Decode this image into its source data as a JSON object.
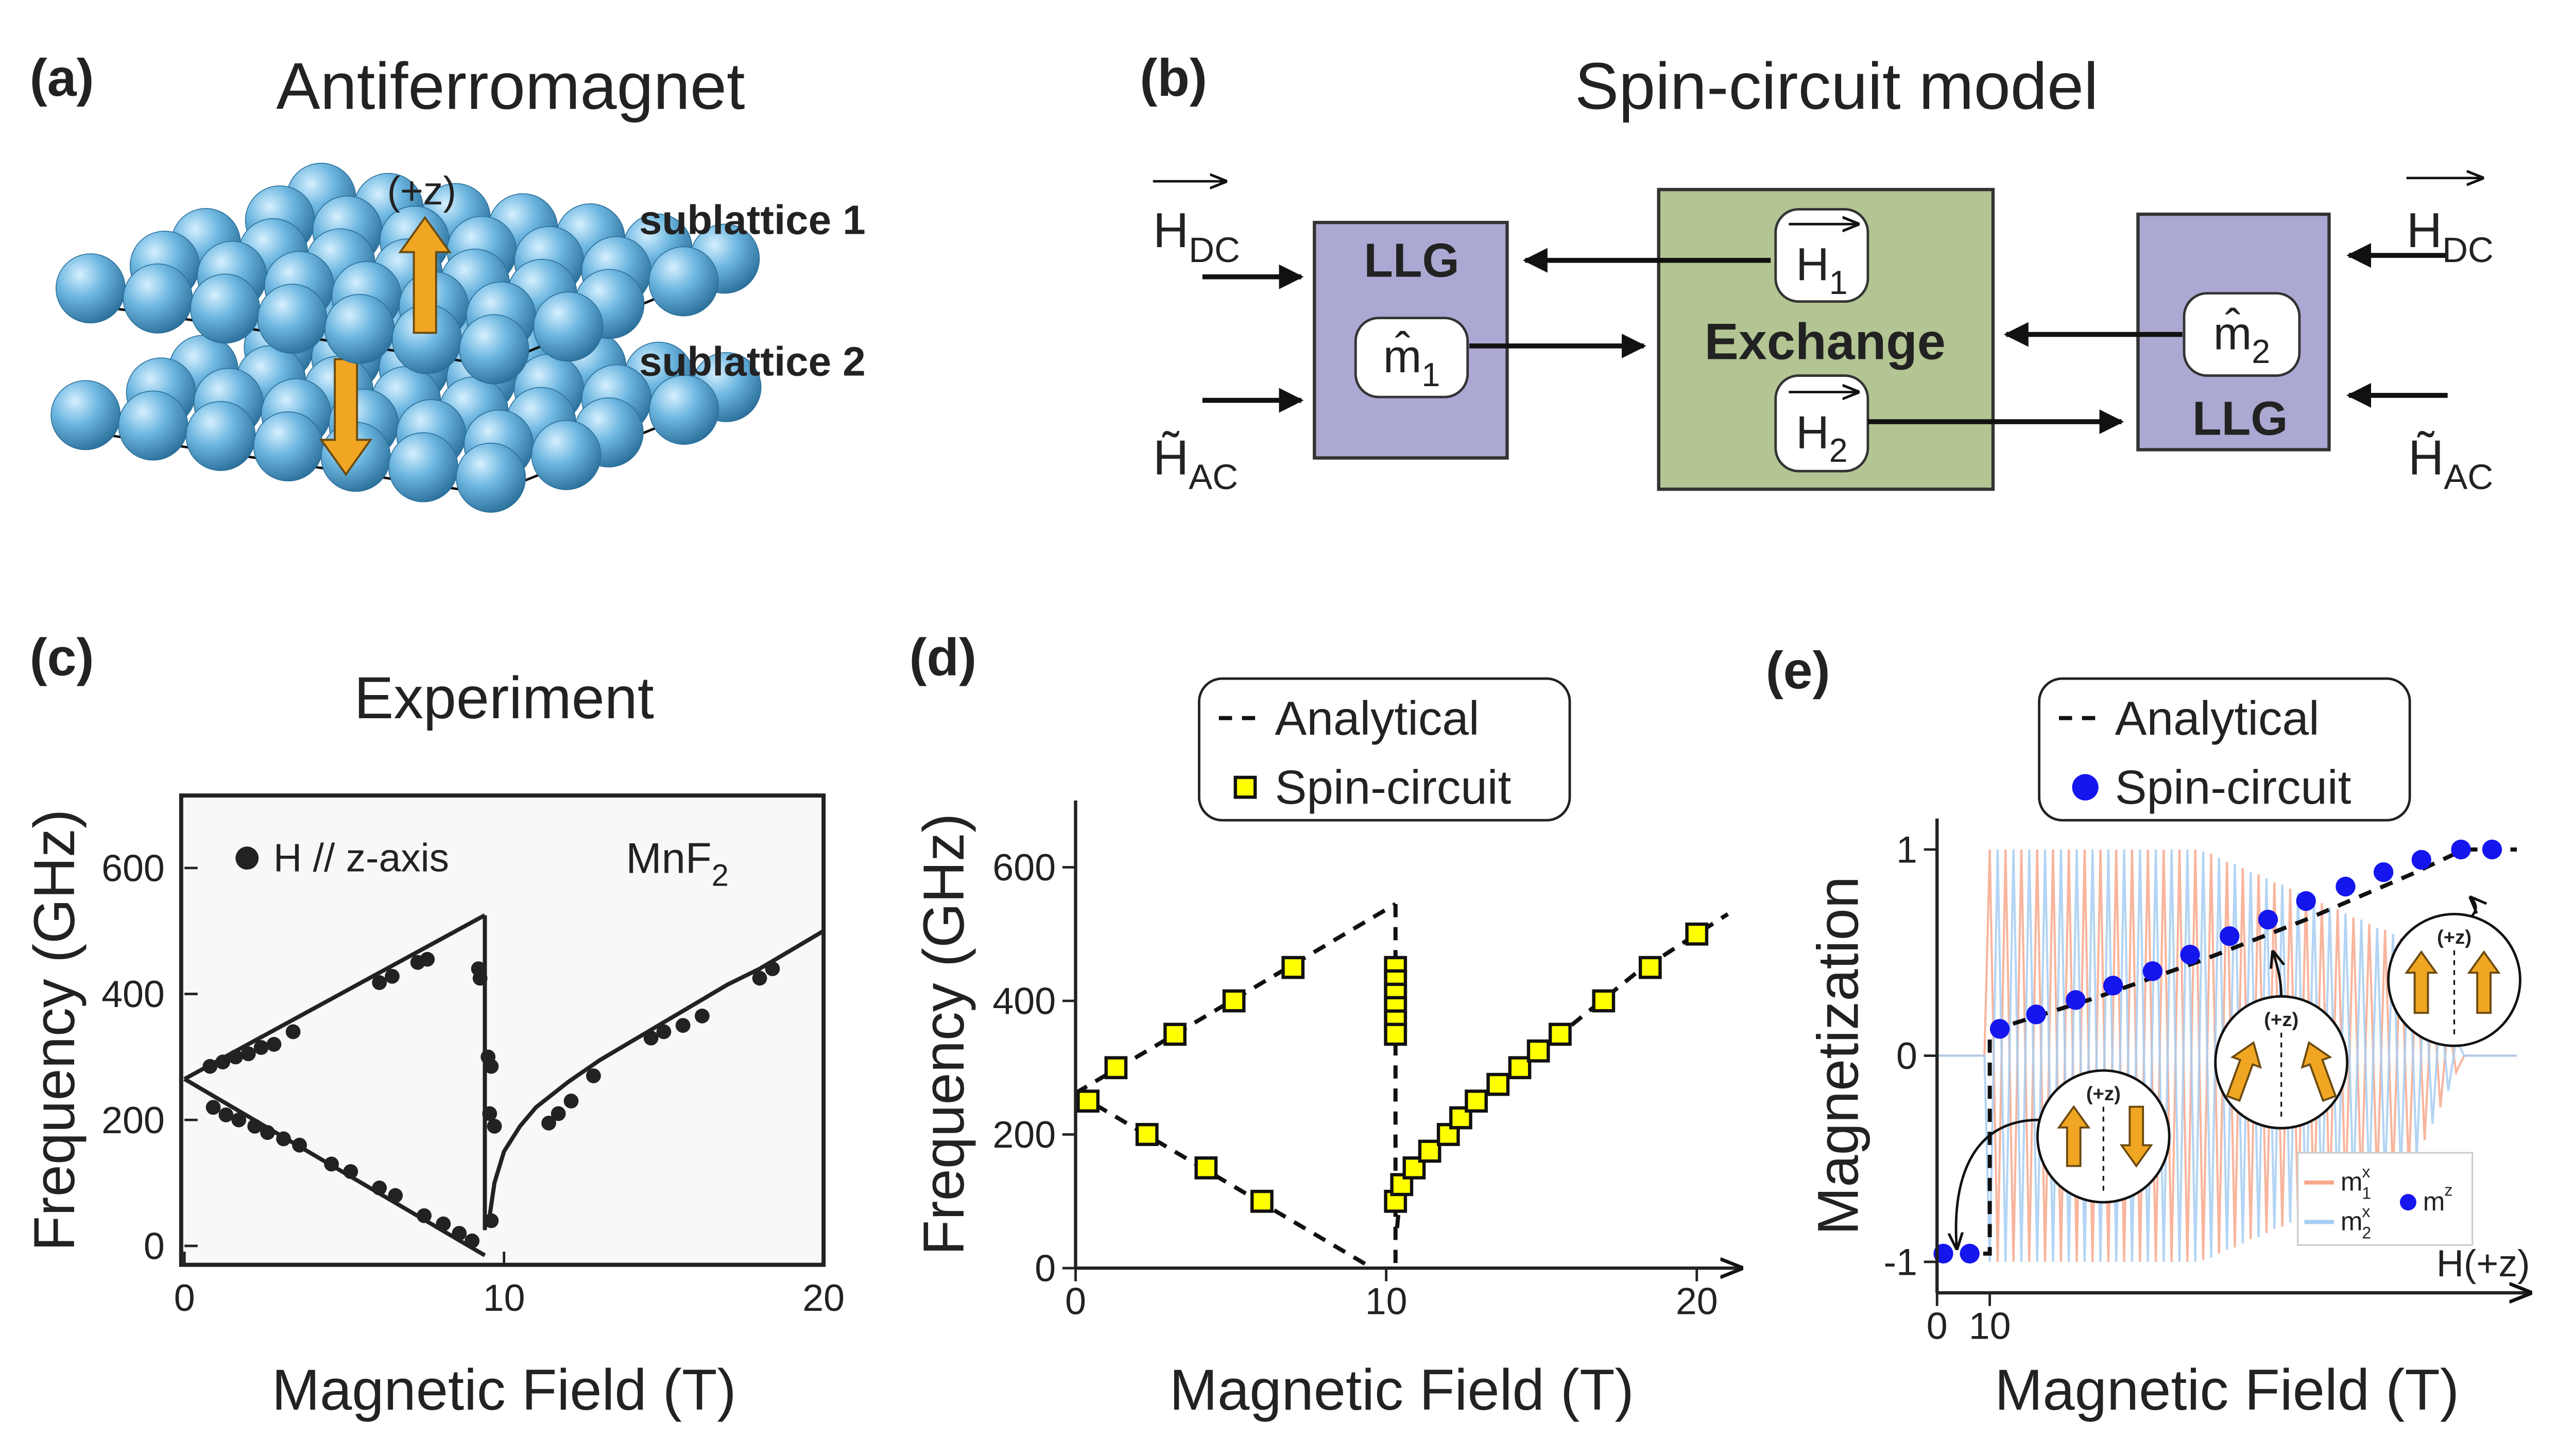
{
  "panel_a": {
    "label": "(a)",
    "title": "Antiferromagnet",
    "axis_label": "(+z)",
    "layers": [
      "sublattice 1",
      "sublattice 2"
    ]
  },
  "panel_b": {
    "label": "(b)",
    "title": "Spin-circuit model",
    "left_inputs": [
      {
        "base": "H",
        "sub": "DC"
      },
      {
        "base": "H̃",
        "sub": "AC"
      }
    ],
    "right_inputs": [
      {
        "base": "H",
        "sub": "DC"
      },
      {
        "base": "H̃",
        "sub": "AC"
      }
    ],
    "llg_1": {
      "title": "LLG",
      "state": {
        "base": "m̂",
        "sub": "1"
      }
    },
    "exchange": {
      "title": "Exchange",
      "field_1": {
        "base": "H",
        "sub": "1"
      },
      "field_2": {
        "base": "H",
        "sub": "2"
      }
    },
    "llg_2": {
      "title": "LLG",
      "state": {
        "base": "m̂",
        "sub": "2"
      }
    }
  },
  "chart_data": [
    {
      "type": "scatter",
      "panel_label": "(c)",
      "title": "Experiment",
      "xlabel": "Magnetic Field (T)",
      "ylabel": "Frequency (GHz)",
      "xlim": [
        0,
        20
      ],
      "ylim": [
        -30,
        715
      ],
      "xticks": [
        0,
        10,
        20
      ],
      "yticks": [
        0,
        200,
        400,
        600
      ],
      "frame": true,
      "legend": "upper left",
      "annotation": {
        "text": "MnF",
        "sub": "2"
      },
      "series": [
        {
          "name": "H // z-axis",
          "kind": "scatter",
          "marker": "circle",
          "color": "#222222",
          "x": [
            0.8,
            1.2,
            1.6,
            2,
            2.4,
            2.8,
            3.4,
            6.1,
            6.5,
            7.3,
            7.6,
            9.2,
            9.25,
            0.9,
            1.3,
            1.7,
            2.2,
            2.6,
            3.1,
            3.6,
            4.6,
            5.2,
            6.1,
            6.6,
            7.5,
            8.1,
            8.6,
            9,
            9.5,
            9.6,
            9.55,
            9.7,
            9.6,
            11.4,
            11.7,
            12.1,
            12.8,
            14.6,
            15,
            15.6,
            16.2,
            18,
            18.4
          ],
          "values": [
            285,
            292,
            300,
            305,
            315,
            320,
            340,
            418,
            428,
            450,
            455,
            440,
            425,
            220,
            208,
            200,
            190,
            180,
            170,
            160,
            130,
            118,
            92,
            80,
            48,
            35,
            20,
            8,
            300,
            285,
            210,
            190,
            40,
            195,
            210,
            230,
            270,
            330,
            340,
            350,
            365,
            425,
            440
          ]
        },
        {
          "kind": "line",
          "color": "#222222",
          "x": [
            0,
            9.4
          ],
          "values": [
            265,
            525
          ]
        },
        {
          "kind": "line",
          "color": "#222222",
          "x": [
            0,
            9.4
          ],
          "values": [
            265,
            -15
          ]
        },
        {
          "kind": "line",
          "color": "#222222",
          "x": [
            9.4,
            9.4
          ],
          "values": [
            525,
            25
          ]
        },
        {
          "kind": "line",
          "color": "#222222",
          "x": [
            9.5,
            9.7,
            10,
            10.5,
            11,
            12,
            13,
            14,
            15,
            16,
            17,
            18,
            19,
            20
          ],
          "values": [
            30,
            100,
            150,
            190,
            220,
            260,
            295,
            325,
            355,
            385,
            415,
            440,
            470,
            500
          ]
        }
      ]
    },
    {
      "type": "scatter",
      "panel_label": "(d)",
      "xlabel": "Magnetic Field (T)",
      "ylabel": "Frequency (GHz)",
      "xlim": [
        0,
        21
      ],
      "ylim": [
        0,
        700
      ],
      "xticks": [
        0,
        10,
        20
      ],
      "yticks": [
        0,
        200,
        400,
        600
      ],
      "legend": "above",
      "series": [
        {
          "name": "Analytical",
          "kind": "line",
          "dashed": true,
          "color": "#111111",
          "x": [
            0,
            10.3
          ],
          "values": [
            262,
            545
          ]
        },
        {
          "kind": "line",
          "dashed": true,
          "color": "#111111",
          "x": [
            0,
            9.55
          ],
          "values": [
            262,
            0
          ]
        },
        {
          "kind": "line",
          "dashed": true,
          "color": "#111111",
          "x": [
            10.3,
            10.3
          ],
          "values": [
            545,
            0
          ]
        },
        {
          "kind": "line",
          "dashed": true,
          "color": "#111111",
          "x": [
            10.35,
            10.45,
            10.8,
            11.5,
            12.5,
            14,
            16,
            18,
            20,
            21
          ],
          "values": [
            60,
            110,
            145,
            180,
            230,
            290,
            365,
            440,
            500,
            530
          ]
        },
        {
          "name": "Spin-circuit",
          "kind": "scatter",
          "marker": "square",
          "color": "#ffff00",
          "x": [
            0.4,
            1.3,
            2.3,
            3.2,
            4.2,
            5.1,
            6,
            7,
            10.3,
            10.3,
            10.3,
            10.3,
            10.3,
            10.3,
            10.3,
            10.5,
            10.9,
            11.4,
            12,
            12.4,
            12.9,
            13.6,
            14.3,
            14.9,
            15.6,
            17,
            18.5,
            20
          ],
          "values": [
            250,
            300,
            200,
            350,
            150,
            400,
            100,
            450,
            450,
            430,
            410,
            390,
            370,
            350,
            100,
            125,
            150,
            175,
            200,
            225,
            250,
            275,
            300,
            325,
            350,
            400,
            450,
            500
          ]
        }
      ]
    },
    {
      "type": "scatter",
      "panel_label": "(e)",
      "xlabel": "Magnetic Field (T)",
      "ylabel": "Magnetization",
      "xlim": [
        0,
        110
      ],
      "ylim": [
        -1.15,
        1.15
      ],
      "xticks": [
        0,
        10
      ],
      "yticks": [
        -1,
        0,
        1
      ],
      "legend": "above",
      "x_arrow_label": "H(+z)",
      "icon_labels": [
        "(+z)",
        "(+z)",
        "(+z)"
      ],
      "series": [
        {
          "name": "m",
          "name_sub": "1",
          "name_sup": "x",
          "kind": "line",
          "color": "#f7a88c",
          "x": [
            0,
            9,
            10,
            11.5,
            13,
            14.5,
            16,
            17.5,
            19,
            20.5,
            22,
            23.5,
            25,
            26.5,
            28,
            29.5,
            31,
            32.5,
            34,
            35.5,
            37,
            38.5,
            40,
            41.5,
            43,
            44.5,
            46,
            47.5,
            49,
            50.5,
            52,
            53.5,
            55,
            56.5,
            58,
            59.5,
            61,
            62.5,
            64,
            65.5,
            67,
            68.5,
            70,
            71.5,
            73,
            74.5,
            76,
            77.5,
            79,
            80.5,
            82,
            83.5,
            85,
            86.5,
            88,
            89.5,
            91,
            92.5,
            94,
            95.5,
            97,
            98.5,
            100,
            110
          ],
          "values": [
            0,
            0,
            1,
            -1,
            1,
            -1,
            1,
            -1,
            1,
            -1,
            1,
            -1,
            1,
            -1,
            1,
            -1,
            1,
            -1,
            1,
            -1,
            1,
            -1,
            1,
            -1,
            1,
            -1,
            1,
            -1,
            1,
            -0.99,
            0.98,
            -0.96,
            0.94,
            -0.93,
            0.91,
            -0.89,
            0.88,
            -0.86,
            0.84,
            -0.83,
            0.81,
            -0.79,
            0.78,
            -0.76,
            0.74,
            -0.72,
            0.71,
            -0.69,
            0.67,
            -0.66,
            0.64,
            -0.62,
            0.61,
            -0.59,
            0.57,
            -0.56,
            0.5,
            -0.41,
            0.33,
            -0.25,
            0.17,
            -0.08,
            0,
            0
          ]
        },
        {
          "name": "m",
          "name_sub": "2",
          "name_sup": "x",
          "kind": "line",
          "color": "#a6cdf2",
          "x": [
            0,
            9,
            10,
            11.5,
            13,
            14.5,
            16,
            17.5,
            19,
            20.5,
            22,
            23.5,
            25,
            26.5,
            28,
            29.5,
            31,
            32.5,
            34,
            35.5,
            37,
            38.5,
            40,
            41.5,
            43,
            44.5,
            46,
            47.5,
            49,
            50.5,
            52,
            53.5,
            55,
            56.5,
            58,
            59.5,
            61,
            62.5,
            64,
            65.5,
            67,
            68.5,
            70,
            71.5,
            73,
            74.5,
            76,
            77.5,
            79,
            80.5,
            82,
            83.5,
            85,
            86.5,
            88,
            89.5,
            91,
            92.5,
            94,
            95.5,
            97,
            98.5,
            100,
            110
          ],
          "values": [
            0,
            0,
            -1,
            1,
            -1,
            1,
            -1,
            1,
            -1,
            1,
            -1,
            1,
            -1,
            1,
            -1,
            1,
            -1,
            1,
            -1,
            1,
            -1,
            1,
            -1,
            1,
            -1,
            1,
            -1,
            1,
            -1,
            0.99,
            -0.98,
            0.96,
            -0.94,
            0.93,
            -0.91,
            0.89,
            -0.88,
            0.86,
            -0.84,
            0.83,
            -0.81,
            0.79,
            -0.78,
            0.76,
            -0.74,
            0.72,
            -0.71,
            0.69,
            -0.67,
            0.66,
            -0.64,
            0.62,
            -0.61,
            0.59,
            -0.57,
            0.56,
            -0.5,
            0.41,
            -0.33,
            0.25,
            -0.17,
            0.08,
            0,
            0
          ]
        },
        {
          "name": "Analytical",
          "kind": "line",
          "dashed": true,
          "color": "#111111",
          "x": [
            0,
            10,
            10,
            20,
            30,
            40,
            50,
            60,
            70,
            80,
            90,
            100,
            110
          ],
          "values": [
            -0.96,
            -0.96,
            0.12,
            0.2,
            0.28,
            0.37,
            0.46,
            0.56,
            0.66,
            0.77,
            0.88,
            1,
            1
          ]
        },
        {
          "name": "Spin-circuit",
          "inset_name": "m",
          "inset_sup": "z",
          "kind": "scatter",
          "marker": "circle",
          "color": "#1515ee",
          "x": [
            1.2,
            6.2,
            11.9,
            18.8,
            26.3,
            33.4,
            40.9,
            48,
            55.5,
            62.8,
            70,
            77.5,
            84.7,
            91.9,
            99.4,
            105.3
          ],
          "values": [
            -0.96,
            -0.96,
            0.13,
            0.2,
            0.27,
            0.34,
            0.41,
            0.49,
            0.58,
            0.66,
            0.75,
            0.82,
            0.89,
            0.95,
            1,
            1
          ]
        }
      ]
    }
  ]
}
